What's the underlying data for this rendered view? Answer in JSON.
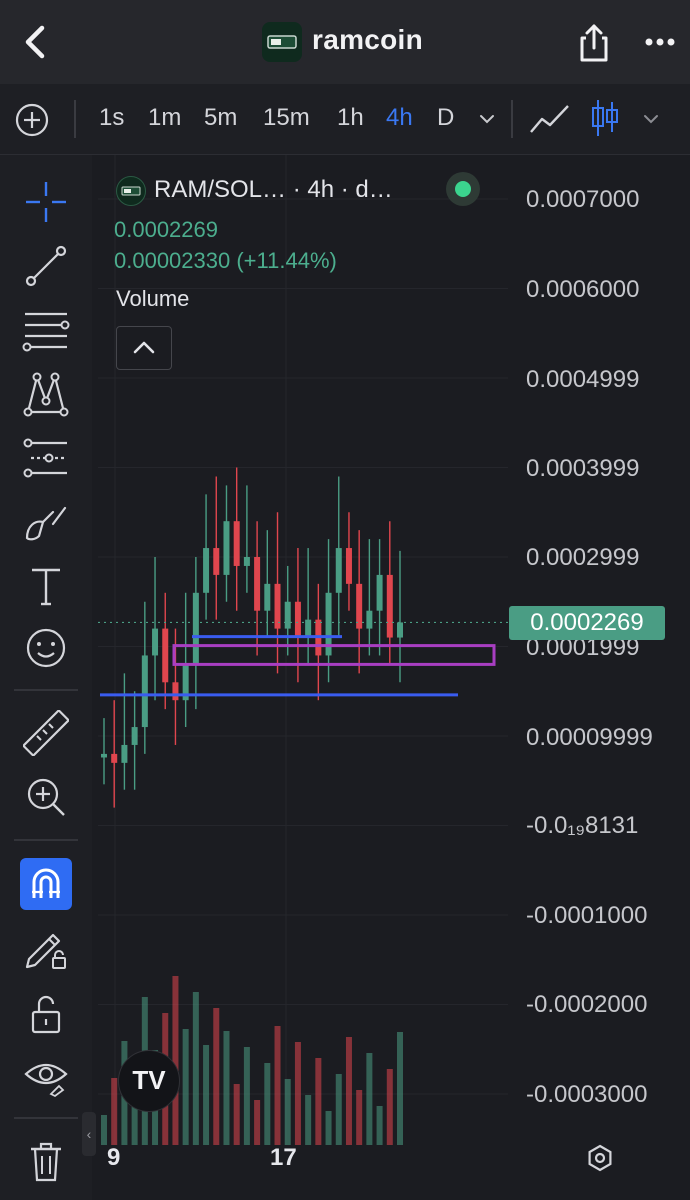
{
  "header": {
    "title": "ramcoin",
    "back_icon": "chevron-left-icon",
    "share_icon": "share-icon",
    "more_icon": "ellipsis-icon"
  },
  "toolbar": {
    "timeframes": [
      "1s",
      "1m",
      "5m",
      "15m",
      "1h",
      "4h",
      "D"
    ],
    "active_timeframe": "4h",
    "accent_color": "#3a78f2"
  },
  "sidebar": {
    "tools": [
      "crosshair-icon",
      "trend-line-icon",
      "fib-levels-icon",
      "pattern-icon",
      "projection-icon",
      "brush-icon",
      "text-icon",
      "emoji-icon",
      "ruler-icon",
      "zoom-in-icon",
      "magnet-icon",
      "lock-drawing-icon",
      "unlock-icon",
      "eye-icon",
      "trash-icon"
    ],
    "active_tool": "magnet-icon"
  },
  "legend": {
    "symbol": "RAM/SOL… · 4h · d…",
    "last_price": "0.0002269",
    "change": "0.00002330 (+11.44%)",
    "volume_label": "Volume"
  },
  "price_axis": {
    "labels": [
      "0.0007000",
      "0.0006000",
      "0.0004999",
      "0.0003999",
      "0.0002999",
      "0.0001999",
      "0.00009999",
      "-0.0₁₉8131",
      "-0.0001000",
      "-0.0002000",
      "-0.0003000"
    ],
    "current_price": "0.0002269",
    "current_price_color": "#4a9d84"
  },
  "time_axis": {
    "labels": [
      "9",
      "17"
    ]
  },
  "chart_data": {
    "type": "candlestick",
    "up_color": "#4a9d84",
    "down_color": "#e0464e",
    "ylim": [
      -0.0003,
      0.0007
    ],
    "x_ticks": [
      "9",
      "17"
    ],
    "candles_approx_close": [
      8e-05,
      7e-05,
      9e-05,
      0.00011,
      0.00019,
      0.00022,
      0.00016,
      0.00014,
      0.00018,
      0.00026,
      0.00031,
      0.00028,
      0.00034,
      0.00029,
      0.0003,
      0.00024,
      0.00027,
      0.00022,
      0.00025,
      0.00021,
      0.00023,
      0.00019,
      0.00026,
      0.00031,
      0.00027,
      0.00022,
      0.00024,
      0.00028,
      0.00021,
      0.0002269
    ],
    "annotations": [
      {
        "type": "horizontal-line",
        "color": "#3a5cf0",
        "price": 0.000211
      },
      {
        "type": "horizontal-line",
        "color": "#3a5cf0",
        "price": 0.000146
      },
      {
        "type": "rectangle",
        "color": "#a83ec2",
        "price_top": 0.000201,
        "price_bottom": 0.00018
      }
    ]
  }
}
